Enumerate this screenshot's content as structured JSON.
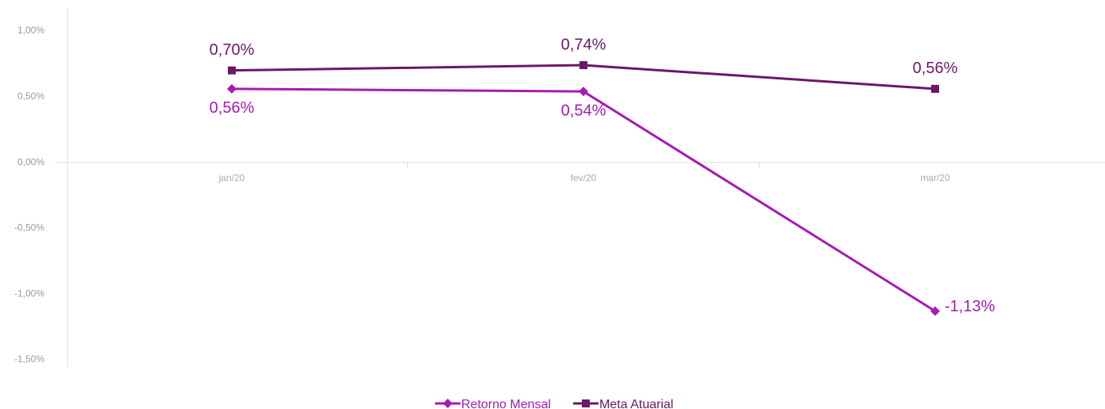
{
  "chart_data": {
    "type": "line",
    "categories": [
      "jan/20",
      "fev/20",
      "mar/20"
    ],
    "series": [
      {
        "name": "Retorno Mensal",
        "color": "#a61ab5",
        "marker": "diamond",
        "values": [
          0.56,
          0.54,
          -1.13
        ],
        "value_labels": [
          "0,56%",
          "0,54%",
          "-1,13%"
        ]
      },
      {
        "name": "Meta Atuarial",
        "color": "#6a1868",
        "marker": "square",
        "values": [
          0.7,
          0.74,
          0.56
        ],
        "value_labels": [
          "0,70%",
          "0,74%",
          "0,56%"
        ]
      }
    ],
    "ylim": [
      -1.5,
      1.0
    ],
    "yticks": [
      {
        "value": -1.5,
        "label": "-1,50%"
      },
      {
        "value": -1.0,
        "label": "-1,00%"
      },
      {
        "value": -0.5,
        "label": "-0,50%"
      },
      {
        "value": 0,
        "label": "0,00%"
      },
      {
        "value": 0.5,
        "label": "0,50%"
      },
      {
        "value": 1.0,
        "label": "1,00%"
      }
    ],
    "legend": "bottom"
  }
}
